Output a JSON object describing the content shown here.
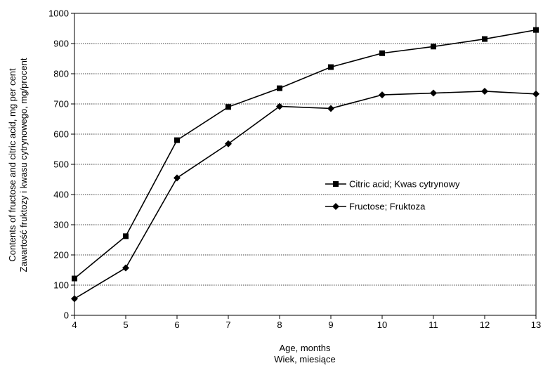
{
  "chart_data": {
    "type": "line",
    "title": "",
    "x": [
      4,
      5,
      6,
      7,
      8,
      9,
      10,
      11,
      12,
      13
    ],
    "xlim": [
      4,
      13
    ],
    "ylim": [
      0,
      1000
    ],
    "yticks": [
      0,
      100,
      200,
      300,
      400,
      500,
      600,
      700,
      800,
      900,
      1000
    ],
    "xlabel_lines": [
      "Age, months",
      "Wiek, miesiące"
    ],
    "ylabel_lines": [
      "Contents of fructose and citric acid, mg per cent",
      "Zawartość fruktozy i kwasu cytrynowego, mg/procent"
    ],
    "grid": "horizontal dotted",
    "legend_position": "right",
    "series": [
      {
        "name": "Citric acid; Kwas cytrynowy",
        "marker": "square",
        "color": "#000000",
        "values": [
          122,
          262,
          580,
          690,
          752,
          822,
          868,
          890,
          915,
          945
        ]
      },
      {
        "name": "Fructose; Fruktoza",
        "marker": "diamond",
        "color": "#000000",
        "values": [
          55,
          157,
          455,
          568,
          692,
          685,
          730,
          736,
          742,
          733
        ]
      }
    ]
  }
}
